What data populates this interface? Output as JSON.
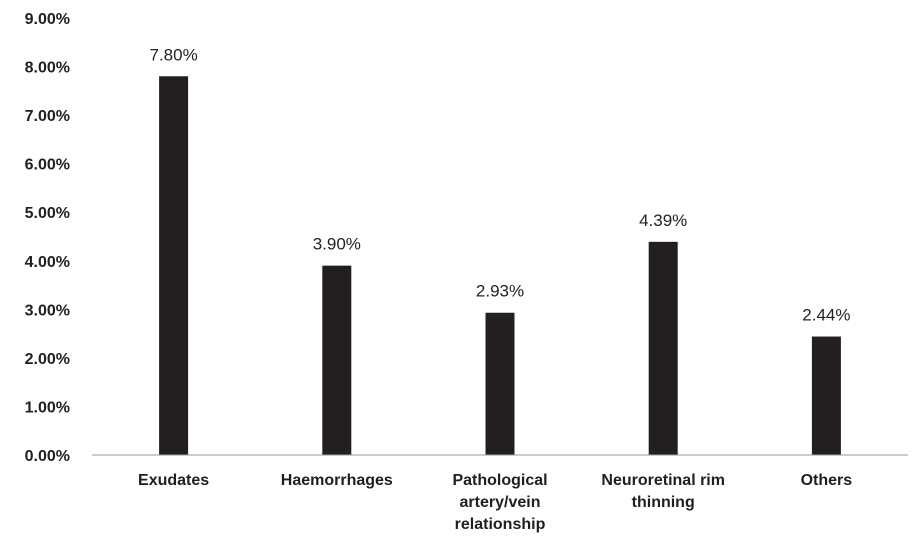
{
  "chart_data": {
    "type": "bar",
    "categories": [
      "Exudates",
      "Haemorrhages",
      "Pathological artery/vein relationship",
      "Neuroretinal rim thinning",
      "Others"
    ],
    "category_lines": [
      [
        "Exudates"
      ],
      [
        "Haemorrhages"
      ],
      [
        "Pathological",
        "artery/vein",
        "relationship"
      ],
      [
        "Neuroretinal rim",
        "thinning"
      ],
      [
        "Others"
      ]
    ],
    "values": [
      7.8,
      3.9,
      2.93,
      4.39,
      2.44
    ],
    "data_labels": [
      "7.80%",
      "3.90%",
      "2.93%",
      "4.39%",
      "2.44%"
    ],
    "yticks": [
      0,
      1,
      2,
      3,
      4,
      5,
      6,
      7,
      8,
      9
    ],
    "ytick_labels": [
      "0.00%",
      "1.00%",
      "2.00%",
      "3.00%",
      "4.00%",
      "5.00%",
      "6.00%",
      "7.00%",
      "8.00%",
      "9.00%"
    ],
    "ylim": [
      0,
      9
    ],
    "title": "",
    "xlabel": "",
    "ylabel": "",
    "bar_color": "#231f20",
    "grid": false,
    "legend": "none"
  }
}
